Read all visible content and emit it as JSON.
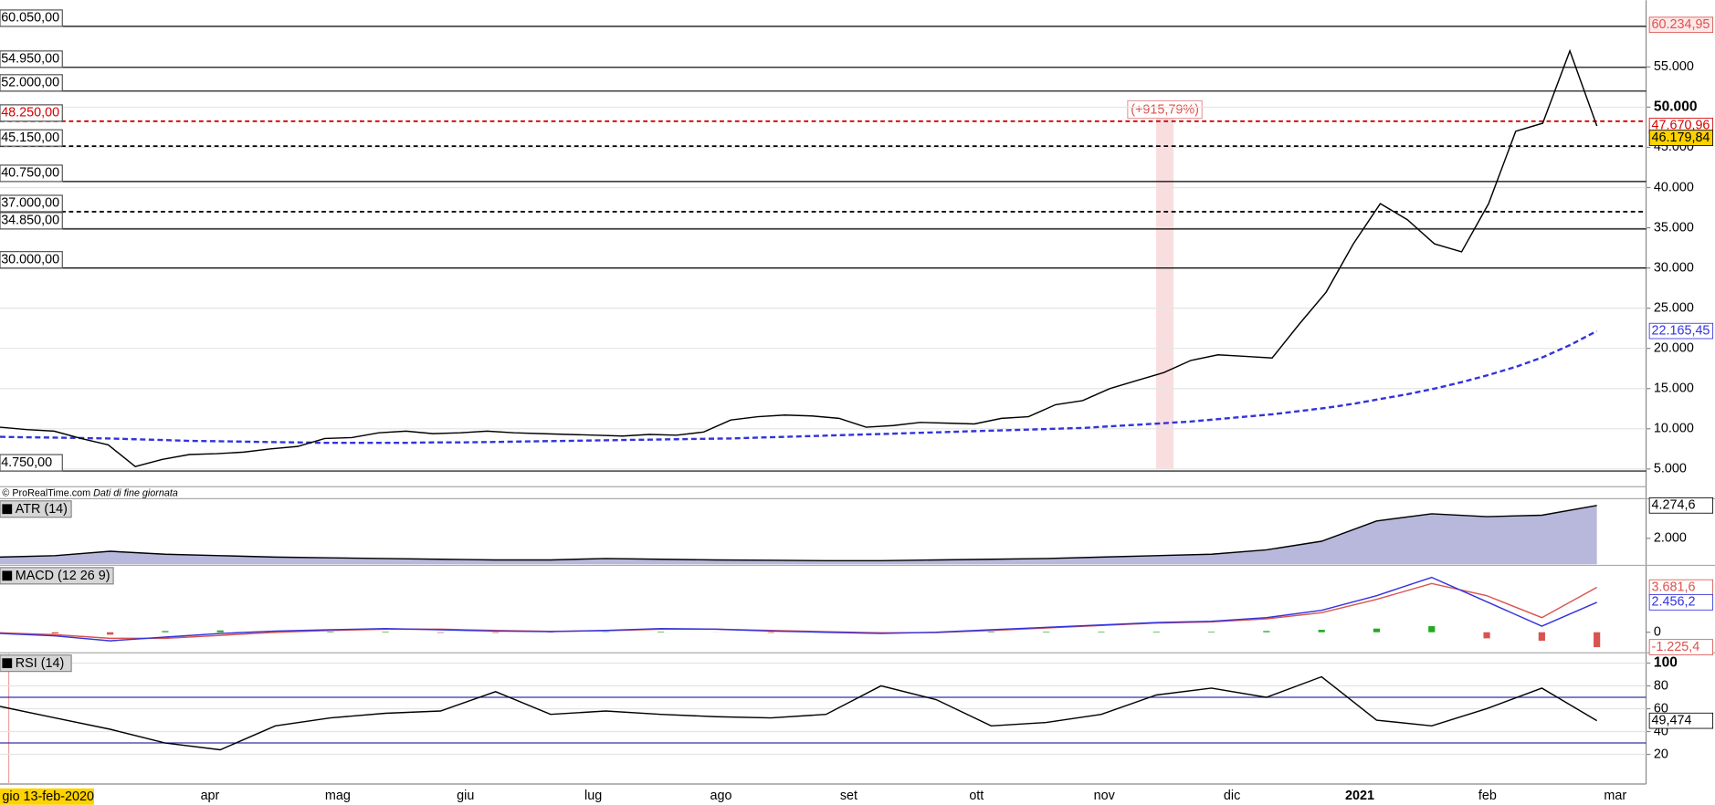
{
  "chart_data": [
    {
      "type": "line",
      "ylim": [
        2800,
        63300
      ],
      "yticks": [
        {
          "value": 5000,
          "label": "5.000"
        },
        {
          "value": 10000,
          "label": "10.000"
        },
        {
          "value": 15000,
          "label": "15.000"
        },
        {
          "value": 20000,
          "label": "20.000"
        },
        {
          "value": 25000,
          "label": "25.000"
        },
        {
          "value": 30000,
          "label": "30.000"
        },
        {
          "value": 35000,
          "label": "35.000"
        },
        {
          "value": 40000,
          "label": "40.000"
        },
        {
          "value": 45000,
          "label": "45.000"
        },
        {
          "value": 50000,
          "label": "50.000"
        },
        {
          "value": 55000,
          "label": "55.000"
        }
      ],
      "emphasized_tick": 50000,
      "grid": true,
      "levels": [
        {
          "value": 60050,
          "label": "60.050,00",
          "color": "#000000",
          "style": "solid"
        },
        {
          "value": 54950,
          "label": "54.950,00",
          "color": "#000000",
          "style": "solid"
        },
        {
          "value": 52000,
          "label": "52.000,00",
          "color": "#000000",
          "style": "solid"
        },
        {
          "value": 48250,
          "label": "48.250,00",
          "color": "#d40000",
          "style": "dashed"
        },
        {
          "value": 45150,
          "label": "45.150,00",
          "color": "#000000",
          "style": "dashed"
        },
        {
          "value": 40750,
          "label": "40.750,00",
          "color": "#000000",
          "style": "solid"
        },
        {
          "value": 37000,
          "label": "37.000,00",
          "color": "#000000",
          "style": "dashed"
        },
        {
          "value": 34850,
          "label": "34.850,00",
          "color": "#000000",
          "style": "solid"
        },
        {
          "value": 30000,
          "label": "30.000,00",
          "color": "#000000",
          "style": "solid"
        },
        {
          "value": 4750,
          "label": "4.750,00",
          "color": "#000000",
          "style": "solid"
        }
      ],
      "series": [
        {
          "color": "#3333dd",
          "style": "dashed",
          "values": [
            9000,
            8950,
            8900,
            8850,
            8800,
            8700,
            8600,
            8500,
            8450,
            8400,
            8350,
            8300,
            8250,
            8250,
            8250,
            8250,
            8300,
            8300,
            8350,
            8400,
            8450,
            8500,
            8550,
            8600,
            8650,
            8700,
            8750,
            8800,
            8900,
            9000,
            9100,
            9200,
            9300,
            9400,
            9500,
            9600,
            9700,
            9800,
            9900,
            10000,
            10100,
            10300,
            10500,
            10700,
            10900,
            11200,
            11500,
            11800,
            12200,
            12600,
            13100,
            13700,
            14300,
            15000,
            15800,
            16700,
            17700,
            18900,
            20400,
            22165.45
          ]
        },
        {
          "color": "#000000",
          "style": "solid",
          "values": [
            10200,
            9900,
            9700,
            8800,
            8000,
            5300,
            6200,
            6800,
            6900,
            7100,
            7500,
            7800,
            8800,
            8900,
            9500,
            9700,
            9400,
            9500,
            9700,
            9500,
            9400,
            9300,
            9200,
            9100,
            9300,
            9200,
            9600,
            11100,
            11500,
            11700,
            11600,
            11300,
            10200,
            10400,
            10800,
            10700,
            10600,
            11300,
            11500,
            13000,
            13500,
            15000,
            16000,
            17000,
            18500,
            19200,
            19000,
            18800,
            23000,
            27000,
            33000,
            38000,
            36000,
            33000,
            32000,
            38000,
            47000,
            48000,
            57000,
            47670.96
          ]
        }
      ],
      "price_labels": [
        {
          "value": 60234.95,
          "label": "60.234,95",
          "color": "#d9534f",
          "background": "#fde8e8"
        },
        {
          "value": 47670.96,
          "label": "47.670,96",
          "color": "#d40000",
          "background": "#ffffff"
        },
        {
          "value": 46179.84,
          "label": "46.179,84",
          "color": "#000000",
          "background": "#ffd200"
        },
        {
          "value": 22165.45,
          "label": "22.165,45",
          "color": "#3333dd",
          "background": "#ffffff"
        }
      ],
      "annotation": "(+915,79%)"
    },
    {
      "type": "area",
      "title": "ATR (14)",
      "ylim": [
        200,
        4670
      ],
      "yticks": [
        {
          "value": 2000,
          "label": "2.000"
        }
      ],
      "series": [
        {
          "color": "#000000",
          "fill": "#b8b8dc",
          "style": "area",
          "values": [
            700,
            800,
            1100,
            900,
            800,
            700,
            650,
            600,
            550,
            500,
            500,
            600,
            550,
            500,
            480,
            450,
            450,
            500,
            550,
            600,
            700,
            800,
            900,
            1200,
            1800,
            3200,
            3700,
            3500,
            3600,
            4274.6
          ]
        }
      ],
      "price_labels": [
        {
          "value": 4274.6,
          "label": "4.274,6",
          "color": "#000000",
          "background": "#ffffff"
        }
      ]
    },
    {
      "type": "line",
      "title": "MACD (12 26 9)",
      "ylim": [
        -1600,
        5400
      ],
      "yticks": [
        0
      ],
      "series": [
        {
          "color": "#22aa22",
          "style": "bar",
          "negative_color": "#d9534f",
          "values": [
            -50,
            -100,
            -200,
            100,
            150,
            100,
            50,
            50,
            -50,
            -50,
            -30,
            30,
            50,
            -10,
            -50,
            -50,
            -50,
            20,
            50,
            50,
            50,
            50,
            50,
            100,
            200,
            300,
            500,
            -500,
            -700,
            -1225.4
          ]
        },
        {
          "color": "#d9534f",
          "style": "solid",
          "values": [
            -50,
            -200,
            -500,
            -500,
            -250,
            0,
            150,
            250,
            250,
            150,
            80,
            120,
            250,
            260,
            150,
            50,
            -50,
            -20,
            150,
            350,
            550,
            750,
            850,
            1100,
            1600,
            2700,
            4000,
            3000,
            1200,
            3681.6
          ]
        },
        {
          "color": "#3333dd",
          "style": "solid",
          "values": [
            -100,
            -300,
            -700,
            -400,
            -100,
            100,
            200,
            300,
            200,
            100,
            50,
            150,
            300,
            250,
            100,
            0,
            -100,
            0,
            200,
            400,
            600,
            800,
            900,
            1200,
            1800,
            3000,
            4500,
            2500,
            500,
            2456.2
          ]
        }
      ],
      "price_labels": [
        {
          "value": 3681.6,
          "label": "3.681,6",
          "color": "#d9534f",
          "background": "#ffffff"
        },
        {
          "value": 2456.2,
          "label": "2.456,2",
          "color": "#3333dd",
          "background": "#ffffff"
        },
        {
          "value": -1225.4,
          "label": "-1.225,4",
          "color": "#d9534f",
          "background": "#ffffff"
        }
      ]
    },
    {
      "type": "line",
      "title": "RSI (14)",
      "ylim": [
        -5,
        108
      ],
      "yticks": [
        20,
        40,
        60,
        80,
        100
      ],
      "emphasized_tick": 100,
      "grid": true,
      "levels": [
        {
          "value": 70,
          "color": "#3333aa",
          "style": "solid"
        },
        {
          "value": 30,
          "color": "#3333aa",
          "style": "solid"
        }
      ],
      "series": [
        {
          "color": "#000000",
          "style": "solid",
          "values": [
            62,
            52,
            42,
            30,
            24,
            45,
            52,
            56,
            58,
            75,
            55,
            58,
            55,
            53,
            52,
            55,
            80,
            68,
            45,
            48,
            55,
            72,
            78,
            70,
            88,
            50,
            45,
            60,
            78,
            49.474
          ]
        }
      ],
      "price_labels": [
        {
          "value": 49.474,
          "label": "49,474",
          "color": "#000000",
          "background": "#ffffff"
        }
      ]
    }
  ],
  "x_axis": {
    "start_label": "gio 13-feb-2020",
    "labels": [
      "apr",
      "mag",
      "giu",
      "lug",
      "ago",
      "set",
      "ott",
      "nov",
      "dic",
      "2021",
      "feb",
      "mar"
    ],
    "emphasized_index": 9
  },
  "source": "© ProRealTime.com",
  "source_note": "Dati di fine giornata"
}
